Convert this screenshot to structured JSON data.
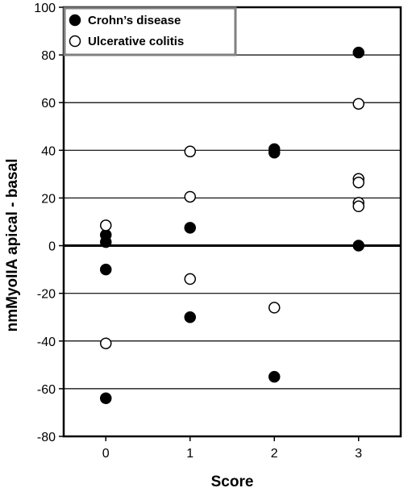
{
  "chart_data": {
    "type": "scatter",
    "title": "",
    "xlabel": "Score",
    "ylabel": "nmMyoIIA apical - basal",
    "xlim": [
      -0.5,
      3.5
    ],
    "ylim": [
      -80,
      100
    ],
    "xticks": [
      "0",
      "1",
      "2",
      "3"
    ],
    "yticks": [
      "-80",
      "-60",
      "-40",
      "-20",
      "0",
      "20",
      "40",
      "60",
      "80",
      "100"
    ],
    "grid": "horizontal",
    "legend_position": "top-left",
    "series": [
      {
        "name": "Crohn’s disease",
        "marker": "filled-circle",
        "color": "#000000",
        "points": [
          {
            "x": 0,
            "y": 4.5
          },
          {
            "x": 0,
            "y": 1.5
          },
          {
            "x": 0,
            "y": -10
          },
          {
            "x": 0,
            "y": -64
          },
          {
            "x": 1,
            "y": 7.5
          },
          {
            "x": 1,
            "y": -30
          },
          {
            "x": 2,
            "y": 40.5
          },
          {
            "x": 2,
            "y": 39
          },
          {
            "x": 2,
            "y": -55
          },
          {
            "x": 3,
            "y": 81
          },
          {
            "x": 3,
            "y": 0
          }
        ]
      },
      {
        "name": "Ulcerative colitis",
        "marker": "open-circle",
        "color": "#000000",
        "points": [
          {
            "x": 0,
            "y": 8.5
          },
          {
            "x": 0,
            "y": -41
          },
          {
            "x": 1,
            "y": 39.5
          },
          {
            "x": 1,
            "y": 20.5
          },
          {
            "x": 1,
            "y": -14
          },
          {
            "x": 2,
            "y": -26
          },
          {
            "x": 3,
            "y": 59.5
          },
          {
            "x": 3,
            "y": 28
          },
          {
            "x": 3,
            "y": 26.5
          },
          {
            "x": 3,
            "y": 18
          },
          {
            "x": 3,
            "y": 16.5
          }
        ]
      }
    ]
  }
}
